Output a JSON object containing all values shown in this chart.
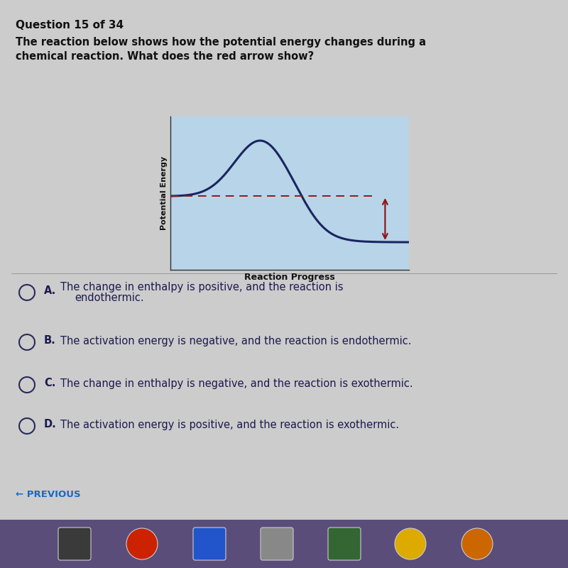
{
  "question_header": "Question 15 of 34",
  "question_text_line1": "The reaction below shows how the potential energy changes during a",
  "question_text_line2": "chemical reaction. What does the red arrow show?",
  "graph_xlabel": "Reaction Progress",
  "graph_ylabel": "Potential Energy",
  "graph_bg_color": "#b8d4e8",
  "graph_line_color": "#1a2560",
  "dashed_line_color": "#8b1a1a",
  "arrow_color": "#8b1a1a",
  "bg_color": "#c8c8c8",
  "previous_text": "← PREVIOUS",
  "taskbar_color": "#5a4d7a",
  "header_fontsize": 11,
  "question_fontsize": 10.5,
  "option_fontsize": 10.5,
  "reactant_level": 0.48,
  "product_level": 0.18,
  "peak_level": 0.85,
  "option_labels": [
    "A.",
    "B.",
    "C.",
    "D."
  ],
  "option_texts": [
    "The change in enthalpy is positive, and the reaction is\nendothermic.",
    "The activation energy is negative, and the reaction is endothermic.",
    "The change in enthalpy is negative, and the reaction is exothermic.",
    "The activation energy is positive, and the reaction is exothermic."
  ],
  "text_color": "#1a1a50",
  "circle_color": "#2a2a5a"
}
